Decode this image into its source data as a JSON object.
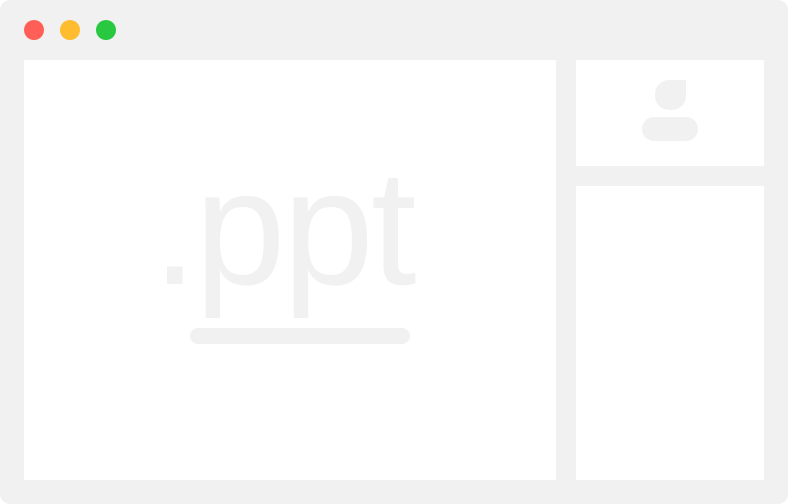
{
  "window": {
    "traffic_lights": {
      "close": "#ff5f57",
      "minimize": "#febc2e",
      "zoom": "#28c840"
    },
    "background_color": "#f1f1f1"
  },
  "main": {
    "file_extension": ".ppt",
    "placeholder_color": "#f1f1f1"
  },
  "sidebar": {
    "avatar_icon": "user-avatar-icon"
  }
}
